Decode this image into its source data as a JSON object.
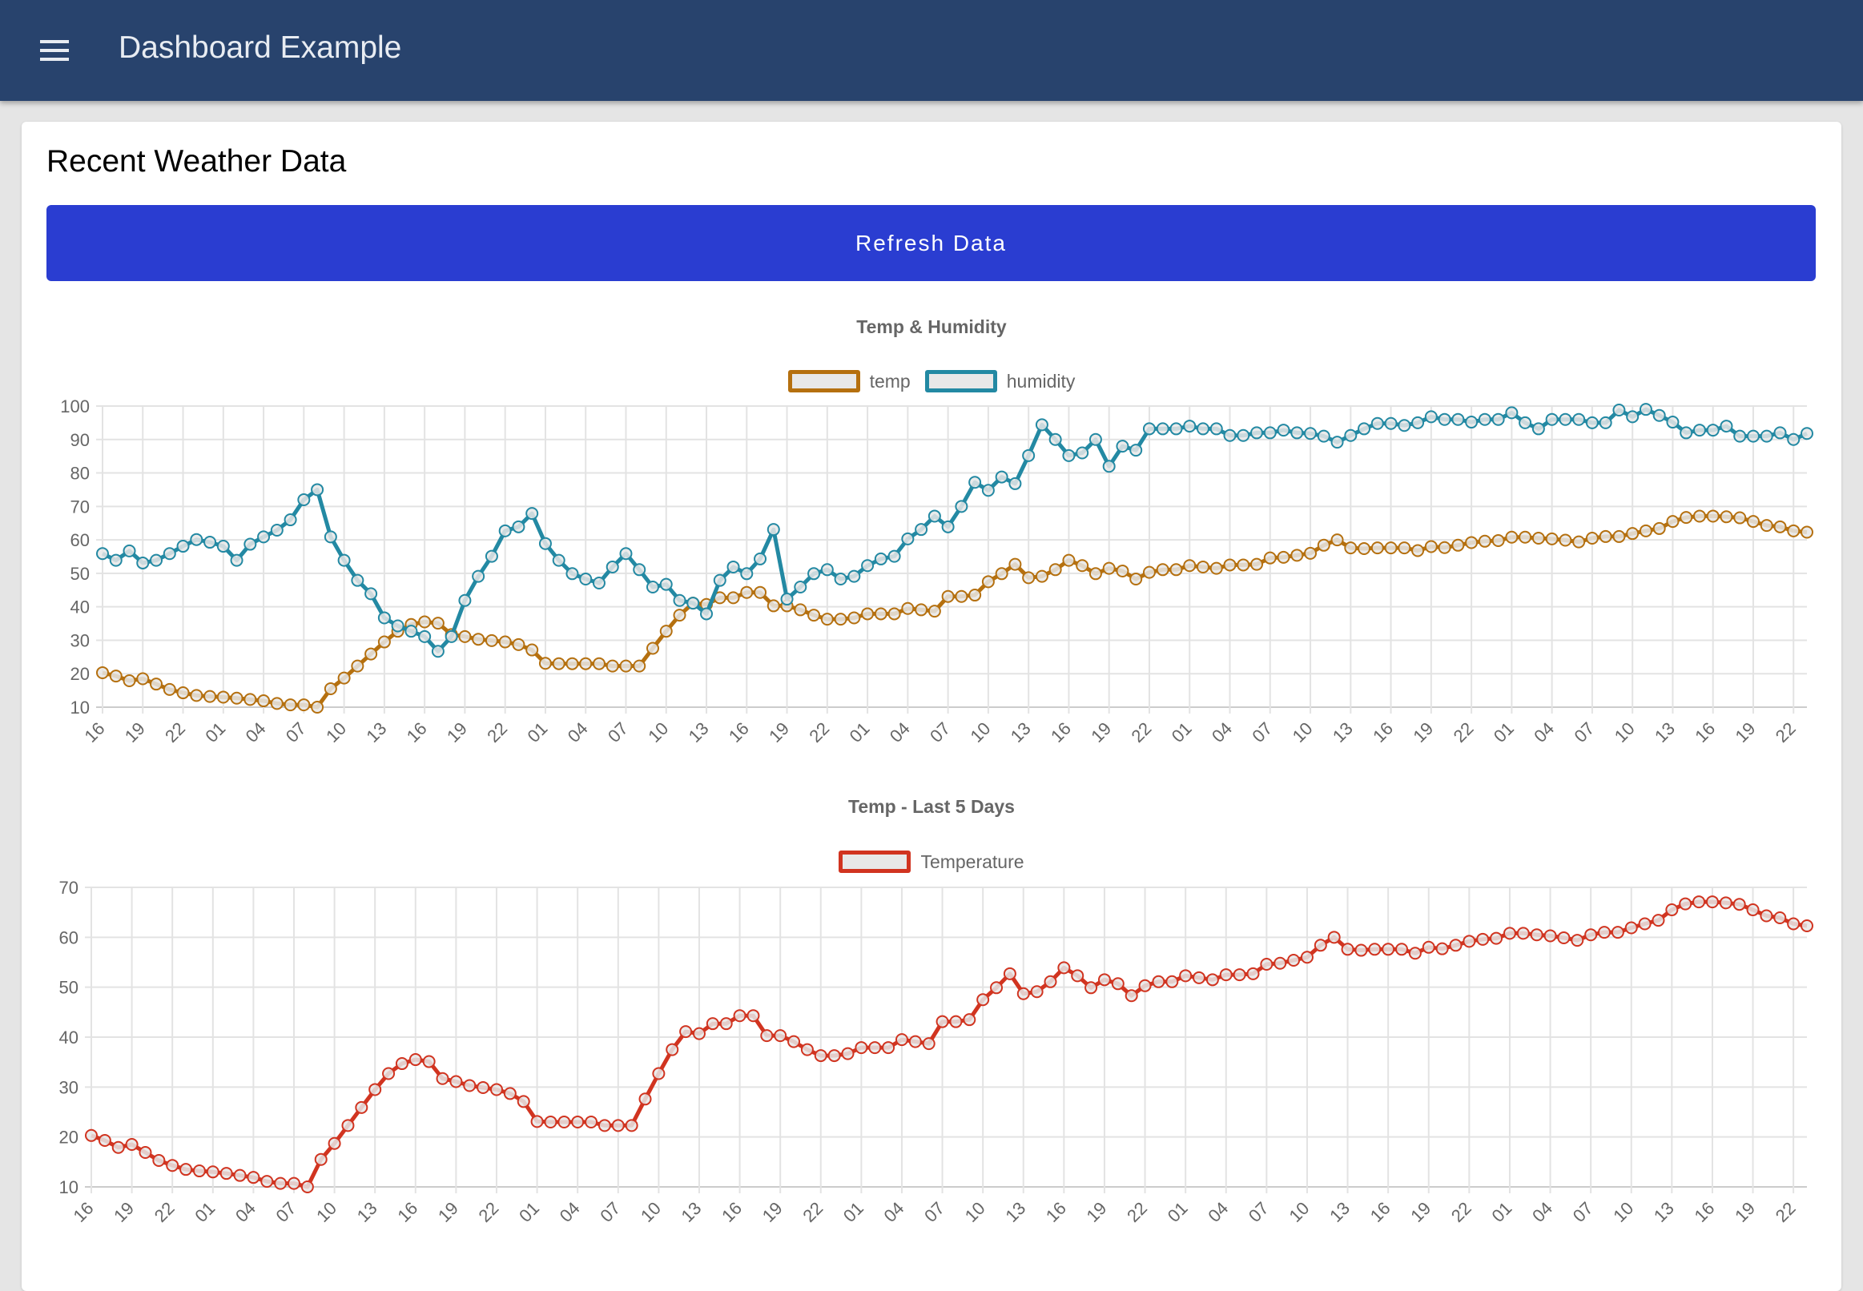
{
  "header": {
    "title": "Dashboard Example",
    "menu_icon": "hamburger-menu-icon"
  },
  "card": {
    "title": "Recent Weather Data",
    "refresh_label": "Refresh Data",
    "refresh_color": "#2a3dd1"
  },
  "colors": {
    "header": "#28436d",
    "temp": "#b5700f",
    "humidity": "#2389a3",
    "temperature": "#d13420"
  },
  "chart_data": [
    {
      "type": "line",
      "title": "Temp & Humidity",
      "legend": "top",
      "grid": true,
      "ylim": [
        10,
        100
      ],
      "yticks": [
        10,
        20,
        30,
        40,
        50,
        60,
        70,
        80,
        90,
        100
      ],
      "x": [
        "16",
        "17",
        "18",
        "19",
        "20",
        "21",
        "22",
        "23",
        "00",
        "01",
        "02",
        "03",
        "04",
        "05",
        "06",
        "07",
        "08",
        "09",
        "10",
        "11",
        "12",
        "13",
        "14",
        "15",
        "16",
        "17",
        "18",
        "19",
        "20",
        "21",
        "22",
        "23",
        "00",
        "01",
        "02",
        "03",
        "04",
        "05",
        "06",
        "07",
        "08",
        "09",
        "10",
        "11",
        "12",
        "13",
        "14",
        "15",
        "16",
        "17",
        "18",
        "19",
        "20",
        "21",
        "22",
        "23",
        "00",
        "01",
        "02",
        "03",
        "04",
        "05",
        "06",
        "07",
        "08",
        "09",
        "10",
        "11",
        "12",
        "13",
        "14",
        "15",
        "16",
        "17",
        "18",
        "19",
        "20",
        "21",
        "22",
        "23",
        "00",
        "01",
        "02",
        "03",
        "04",
        "05",
        "06",
        "07",
        "08",
        "09",
        "10",
        "11",
        "12",
        "13",
        "14",
        "15",
        "16",
        "17",
        "18",
        "19",
        "20",
        "21",
        "22",
        "23",
        "00",
        "01",
        "02",
        "03",
        "04",
        "05",
        "06",
        "07",
        "08",
        "09",
        "10",
        "11",
        "12",
        "13",
        "14",
        "15",
        "16",
        "17",
        "18",
        "19",
        "20",
        "21",
        "22",
        "23"
      ],
      "series": [
        {
          "name": "temp",
          "color": "#b5700f",
          "values": [
            20.3,
            19.3,
            17.9,
            18.5,
            16.9,
            15.3,
            14.3,
            13.5,
            13.2,
            13,
            12.7,
            12.3,
            11.9,
            11.1,
            10.7,
            10.7,
            10,
            15.5,
            18.7,
            22.3,
            25.9,
            29.5,
            32.7,
            34.7,
            35.5,
            35.1,
            31.7,
            31.1,
            30.3,
            29.9,
            29.5,
            28.7,
            27.1,
            23.1,
            23,
            23,
            23,
            23,
            22.3,
            22.3,
            22.3,
            27.6,
            32.7,
            37.5,
            41.1,
            40.7,
            42.7,
            42.7,
            44.3,
            44.3,
            40.3,
            40.3,
            39.1,
            37.5,
            36.3,
            36.3,
            36.7,
            37.9,
            37.9,
            37.9,
            39.5,
            39.1,
            38.7,
            43.1,
            43.1,
            43.5,
            47.5,
            49.9,
            52.7,
            48.7,
            49.1,
            51.1,
            53.9,
            52.3,
            49.9,
            51.5,
            50.7,
            48.3,
            50.3,
            51.1,
            51.1,
            52.3,
            51.9,
            51.5,
            52.5,
            52.5,
            52.7,
            54.6,
            54.8,
            55.4,
            56,
            58.4,
            60,
            57.6,
            57.4,
            57.6,
            57.6,
            57.6,
            56.8,
            58,
            57.7,
            58.4,
            59.2,
            59.6,
            59.8,
            60.8,
            60.8,
            60.5,
            60.3,
            59.9,
            59.4,
            60.5,
            61,
            61,
            61.9,
            62.7,
            63.4,
            65.5,
            66.7,
            67.1,
            67.1,
            66.9,
            66.6,
            65.5,
            64.3,
            63.9,
            62.7,
            62.3
          ]
        },
        {
          "name": "humidity",
          "color": "#2389a3",
          "values": [
            55.9,
            53.9,
            56.7,
            53.1,
            53.9,
            55.9,
            58.1,
            60.1,
            59.3,
            58.1,
            53.9,
            58.7,
            60.9,
            62.9,
            66,
            72,
            75,
            60.9,
            53.9,
            47.9,
            43.9,
            36.7,
            34.3,
            32.7,
            31.1,
            26.7,
            31.1,
            41.9,
            49.1,
            55.1,
            62.7,
            63.9,
            67.9,
            58.9,
            53.9,
            49.9,
            48.3,
            47.1,
            51.9,
            55.9,
            51.1,
            45.9,
            46.7,
            41.9,
            41.1,
            37.9,
            47.9,
            51.9,
            49.9,
            54.3,
            63.1,
            42.3,
            45.9,
            49.9,
            51.1,
            48.3,
            49.1,
            52.3,
            54.3,
            55.1,
            60.3,
            63.1,
            67.1,
            63.9,
            70,
            77.2,
            74.8,
            78.8,
            76.8,
            85.2,
            94.4,
            90,
            85.2,
            86,
            90,
            82,
            88,
            86.8,
            93.2,
            93.2,
            93.2,
            94,
            93.2,
            93.2,
            91.2,
            91.2,
            92,
            92,
            92.8,
            92,
            91.8,
            91,
            89.2,
            91.2,
            93.2,
            94.8,
            94.8,
            94.2,
            95,
            96.8,
            96,
            96,
            95.2,
            96,
            96,
            98,
            95,
            93.2,
            96,
            96,
            96,
            95,
            95,
            98.8,
            96.8,
            99,
            97.2,
            95.2,
            92,
            92.8,
            92.8,
            94,
            91,
            91,
            91,
            92,
            90,
            91.8
          ]
        }
      ]
    },
    {
      "type": "line",
      "title": "Temp - Last 5 Days",
      "legend": "top",
      "grid": true,
      "ylim": [
        10,
        70
      ],
      "yticks": [
        10,
        20,
        30,
        40,
        50,
        60,
        70
      ],
      "x_same_as_first": true,
      "series": [
        {
          "name": "Temperature",
          "color": "#d13420",
          "values": [
            20.3,
            19.3,
            17.9,
            18.5,
            16.9,
            15.3,
            14.3,
            13.5,
            13.2,
            13,
            12.7,
            12.3,
            11.9,
            11.1,
            10.7,
            10.7,
            10,
            15.5,
            18.7,
            22.3,
            25.9,
            29.5,
            32.7,
            34.7,
            35.5,
            35.1,
            31.7,
            31.1,
            30.3,
            29.9,
            29.5,
            28.7,
            27.1,
            23.1,
            23,
            23,
            23,
            23,
            22.3,
            22.3,
            22.3,
            27.6,
            32.7,
            37.5,
            41.1,
            40.7,
            42.7,
            42.7,
            44.3,
            44.3,
            40.3,
            40.3,
            39.1,
            37.5,
            36.3,
            36.3,
            36.7,
            37.9,
            37.9,
            37.9,
            39.5,
            39.1,
            38.7,
            43.1,
            43.1,
            43.5,
            47.5,
            49.9,
            52.7,
            48.7,
            49.1,
            51.1,
            53.9,
            52.3,
            49.9,
            51.5,
            50.7,
            48.3,
            50.3,
            51.1,
            51.1,
            52.3,
            51.9,
            51.5,
            52.5,
            52.5,
            52.7,
            54.6,
            54.8,
            55.4,
            56,
            58.4,
            60,
            57.6,
            57.4,
            57.6,
            57.6,
            57.6,
            56.8,
            58,
            57.7,
            58.4,
            59.2,
            59.6,
            59.8,
            60.8,
            60.8,
            60.5,
            60.3,
            59.9,
            59.4,
            60.5,
            61,
            61,
            61.9,
            62.7,
            63.4,
            65.5,
            66.7,
            67.1,
            67.1,
            66.9,
            66.6,
            65.5,
            64.3,
            63.9,
            62.7,
            62.3
          ]
        }
      ]
    }
  ]
}
